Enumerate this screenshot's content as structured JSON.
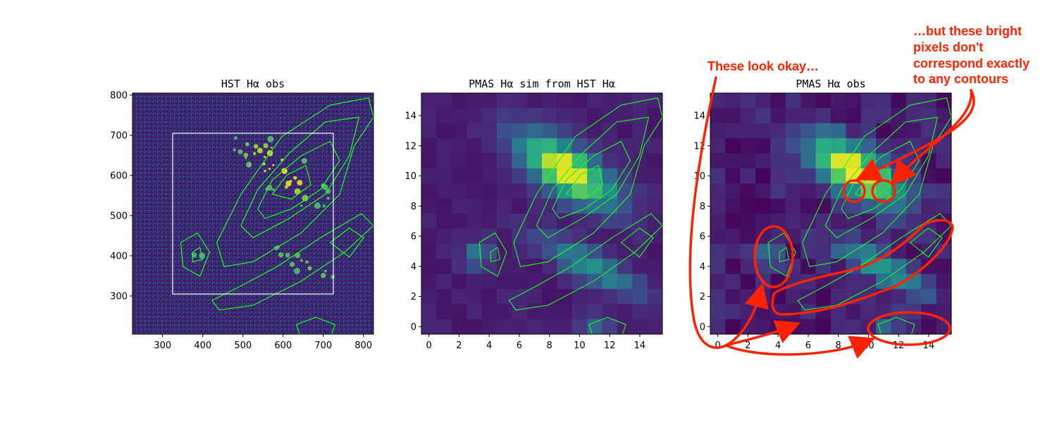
{
  "figure": {
    "background": "#ffffff"
  },
  "colors": {
    "contour": "#19ff19",
    "annotation": "#ff2200",
    "rect": "#ffffff",
    "viridis_low": "#440154",
    "viridis_high": "#fde725"
  },
  "chart_data": [
    {
      "type": "heatmap",
      "title": "HST Hα obs",
      "xlim": [
        225,
        825
      ],
      "ylim": [
        205,
        805
      ],
      "xticks": [
        "300",
        "400",
        "500",
        "600",
        "700",
        "800"
      ],
      "yticks": [
        "300",
        "400",
        "500",
        "600",
        "700",
        "800"
      ],
      "xtick_values": [
        300,
        400,
        500,
        600,
        700,
        800
      ],
      "ytick_values": [
        300,
        400,
        500,
        600,
        700,
        800
      ],
      "overlay_box": {
        "x0": 325,
        "x1": 725,
        "y0": 305,
        "y1": 705,
        "color": "#ffffff"
      },
      "contours": true
    },
    {
      "type": "heatmap",
      "title": "PMAS Hα sim from HST Hα",
      "xlim": [
        -0.5,
        15.5
      ],
      "ylim": [
        -0.5,
        15.5
      ],
      "xticks": [
        "0",
        "2",
        "4",
        "6",
        "8",
        "10",
        "12",
        "14"
      ],
      "yticks": [
        "0",
        "2",
        "4",
        "6",
        "8",
        "10",
        "12",
        "14"
      ],
      "xtick_values": [
        0,
        2,
        4,
        6,
        8,
        10,
        12,
        14
      ],
      "ytick_values": [
        0,
        2,
        4,
        6,
        8,
        10,
        12,
        14
      ],
      "grid_size": 16,
      "contours": true
    },
    {
      "type": "heatmap",
      "title": "PMAS Hα obs",
      "xlim": [
        -0.5,
        15.5
      ],
      "ylim": [
        -0.5,
        15.5
      ],
      "xticks": [
        "0",
        "2",
        "4",
        "6",
        "8",
        "10",
        "12",
        "14"
      ],
      "yticks": [
        "0",
        "2",
        "4",
        "6",
        "8",
        "10",
        "12",
        "14"
      ],
      "xtick_values": [
        0,
        2,
        4,
        6,
        8,
        10,
        12,
        14
      ],
      "ytick_values": [
        0,
        2,
        4,
        6,
        8,
        10,
        12,
        14
      ],
      "grid_size": 16,
      "contours": true
    }
  ],
  "annotations": {
    "left": "These look okay…",
    "right_line1": "…but these bright",
    "right_line2": "pixels don't",
    "right_line3": "correspond exactly",
    "right_line4": "to any contours"
  }
}
